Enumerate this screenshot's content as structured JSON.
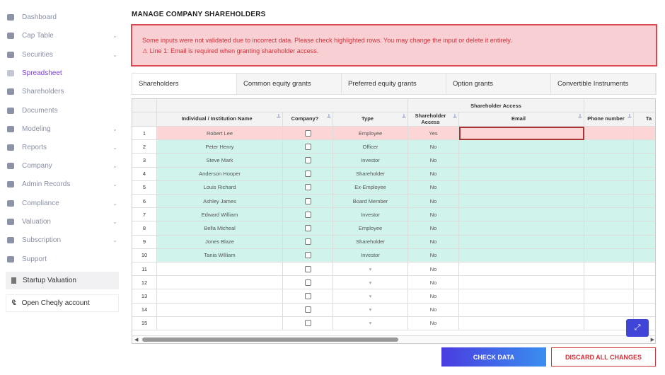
{
  "sidebar": {
    "items": [
      {
        "label": "Dashboard",
        "icon": "dashboard-icon",
        "chevron": false
      },
      {
        "label": "Cap Table",
        "icon": "pie-chart-icon",
        "chevron": true
      },
      {
        "label": "Securities",
        "icon": "clipboard-icon",
        "chevron": true
      },
      {
        "label": "Spreadsheet",
        "icon": "spreadsheet-icon",
        "chevron": false,
        "active": true
      },
      {
        "label": "Shareholders",
        "icon": "user-icon",
        "chevron": false
      },
      {
        "label": "Documents",
        "icon": "folder-icon",
        "chevron": false
      },
      {
        "label": "Modeling",
        "icon": "lightbulb-icon",
        "chevron": true
      },
      {
        "label": "Reports",
        "icon": "report-icon",
        "chevron": true
      },
      {
        "label": "Company",
        "icon": "building-icon",
        "chevron": true
      },
      {
        "label": "Admin Records",
        "icon": "records-icon",
        "chevron": true
      },
      {
        "label": "Compliance",
        "icon": "shield-icon",
        "chevron": true
      },
      {
        "label": "Valuation",
        "icon": "chart-icon",
        "chevron": true
      },
      {
        "label": "Subscription",
        "icon": "dollar-icon",
        "chevron": true
      },
      {
        "label": "Support",
        "icon": "support-icon",
        "chevron": false
      }
    ],
    "startup_valuation": "Startup Valuation",
    "open_account": "Open Cheqly account"
  },
  "page_title": "MANAGE COMPANY SHAREHOLDERS",
  "error": {
    "message": "Some inputs were not validated due to incorrect data. Please check highlighted rows. You may change the input or delete it entirely.",
    "line": "Line 1: Email is required when granting shareholder access."
  },
  "tabs": [
    "Shareholders",
    "Common equity grants",
    "Preferred equity grants",
    "Option grants",
    "Convertible Instruments"
  ],
  "grid": {
    "group_header": "Shareholder Access",
    "columns": [
      "Individual / Institution Name",
      "Company?",
      "Type",
      "Shareholder Access",
      "Email",
      "Phone number",
      "Ta"
    ],
    "rows": [
      {
        "n": "1",
        "name": "Robert Lee",
        "type": "Employee",
        "access": "Yes",
        "status": "error"
      },
      {
        "n": "2",
        "name": "Peter Henry",
        "type": "Officer",
        "access": "No",
        "status": "ok"
      },
      {
        "n": "3",
        "name": "Steve Mark",
        "type": "Investor",
        "access": "No",
        "status": "ok"
      },
      {
        "n": "4",
        "name": "Anderson Hooper",
        "type": "Shareholder",
        "access": "No",
        "status": "ok"
      },
      {
        "n": "5",
        "name": "Louis Richard",
        "type": "Ex-Employee",
        "access": "No",
        "status": "ok"
      },
      {
        "n": "6",
        "name": "Ashley James",
        "type": "Board Member",
        "access": "No",
        "status": "ok"
      },
      {
        "n": "7",
        "name": "Edward William",
        "type": "Investor",
        "access": "No",
        "status": "ok"
      },
      {
        "n": "8",
        "name": "Bella Micheal",
        "type": "Employee",
        "access": "No",
        "status": "ok"
      },
      {
        "n": "9",
        "name": "Jones Blaze",
        "type": "Shareholder",
        "access": "No",
        "status": "ok"
      },
      {
        "n": "10",
        "name": "Tania William",
        "type": "Investor",
        "access": "No",
        "status": "ok"
      },
      {
        "n": "11",
        "name": "",
        "type": "▾",
        "access": "No",
        "status": "empty"
      },
      {
        "n": "12",
        "name": "",
        "type": "▾",
        "access": "No",
        "status": "empty"
      },
      {
        "n": "13",
        "name": "",
        "type": "▾",
        "access": "No",
        "status": "empty"
      },
      {
        "n": "14",
        "name": "",
        "type": "▾",
        "access": "No",
        "status": "empty"
      },
      {
        "n": "15",
        "name": "",
        "type": "▾",
        "access": "No",
        "status": "empty"
      }
    ]
  },
  "buttons": {
    "check": "CHECK DATA",
    "discard": "DISCARD ALL CHANGES"
  },
  "colors": {
    "accent": "#7b45d6",
    "error_bg": "#f8d0d3",
    "error_row": "#fcd6d6",
    "ok_row": "#d0f3ec",
    "primary": "#3b4fe0",
    "danger": "#d0303a"
  }
}
